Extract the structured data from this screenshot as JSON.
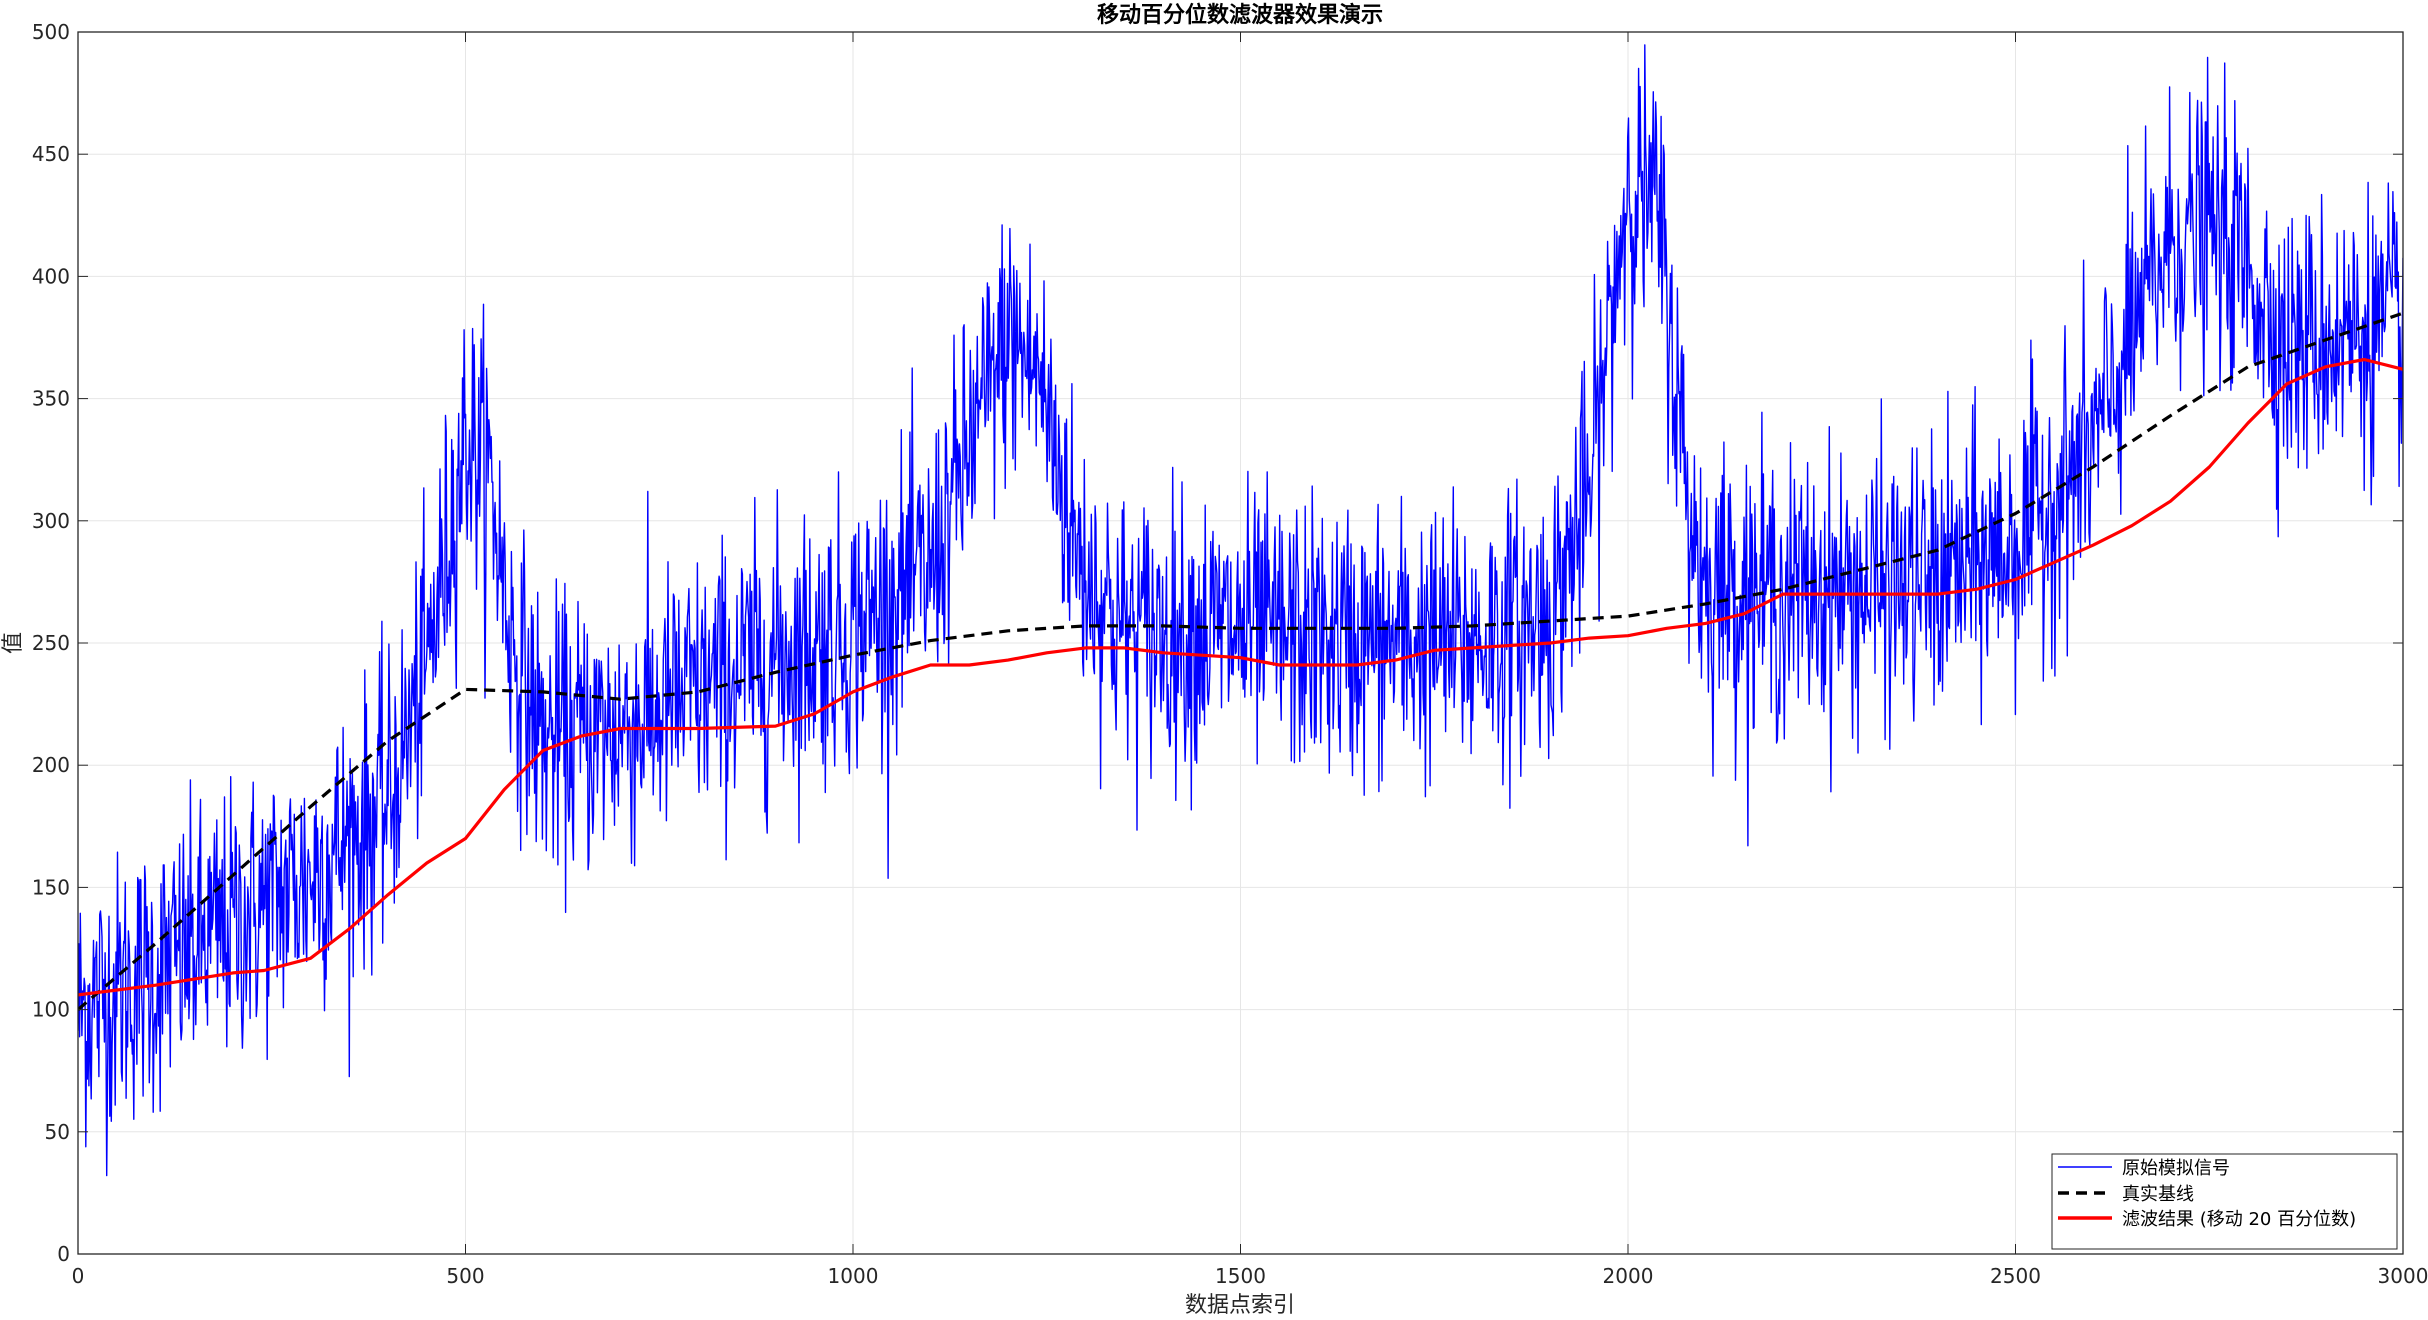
{
  "chart_data": {
    "type": "line",
    "title": "移动百分位数滤波器效果演示",
    "xlabel": "数据点索引",
    "ylabel": "值",
    "xlim": [
      0,
      3000
    ],
    "ylim": [
      0,
      500
    ],
    "xticks": [
      0,
      500,
      1000,
      1500,
      2000,
      2500,
      3000
    ],
    "yticks": [
      0,
      50,
      100,
      150,
      200,
      250,
      300,
      350,
      400,
      450,
      500
    ],
    "grid": true,
    "legend_position": "bottom-right",
    "series": [
      {
        "name": "原始模拟信号",
        "color": "#0000ff",
        "style": "solid",
        "noisy": true,
        "sample_count": 3000,
        "noise_amplitude": 28,
        "x": [
          0,
          100,
          200,
          300,
          400,
          450,
          500,
          530,
          560,
          600,
          700,
          800,
          900,
          1000,
          1100,
          1150,
          1200,
          1240,
          1290,
          1350,
          1500,
          1650,
          1800,
          1900,
          1950,
          2000,
          2040,
          2080,
          2100,
          2200,
          2300,
          2400,
          2500,
          2600,
          2650,
          2700,
          2750,
          2800,
          2850,
          2900,
          3000
        ],
        "y": [
          100,
          115,
          135,
          155,
          185,
          240,
          335,
          320,
          250,
          210,
          215,
          230,
          245,
          255,
          280,
          330,
          375,
          360,
          285,
          255,
          255,
          250,
          250,
          262,
          310,
          440,
          425,
          300,
          275,
          270,
          272,
          275,
          290,
          330,
          375,
          415,
          420,
          405,
          370,
          375,
          380
        ]
      },
      {
        "name": "真实基线",
        "color": "#000000",
        "style": "dashed",
        "x": [
          0,
          100,
          200,
          300,
          400,
          500,
          600,
          700,
          800,
          900,
          1000,
          1100,
          1200,
          1300,
          1400,
          1500,
          1600,
          1700,
          1800,
          1900,
          2000,
          2100,
          2200,
          2300,
          2400,
          2500,
          2600,
          2700,
          2800,
          2900,
          3000
        ],
        "y": [
          100,
          127,
          155,
          183,
          210,
          231,
          230,
          227,
          230,
          238,
          245,
          251,
          255,
          257,
          257,
          256,
          256,
          256,
          257,
          259,
          261,
          266,
          272,
          280,
          288,
          303,
          322,
          343,
          363,
          374,
          385
        ]
      },
      {
        "name": "滤波结果 (移动 20 百分位数)",
        "color": "#ff0000",
        "style": "solid",
        "x": [
          0,
          100,
          200,
          240,
          300,
          350,
          400,
          450,
          500,
          550,
          600,
          650,
          700,
          750,
          800,
          900,
          950,
          1000,
          1050,
          1100,
          1150,
          1200,
          1250,
          1300,
          1350,
          1400,
          1450,
          1500,
          1550,
          1600,
          1650,
          1700,
          1750,
          1800,
          1850,
          1900,
          1950,
          2000,
          2050,
          2100,
          2150,
          2200,
          2250,
          2300,
          2350,
          2400,
          2450,
          2500,
          2550,
          2600,
          2650,
          2700,
          2750,
          2800,
          2850,
          2900,
          2950,
          3000
        ],
        "y": [
          106,
          110,
          115,
          116,
          121,
          133,
          147,
          160,
          170,
          190,
          206,
          212,
          215,
          215,
          215,
          216,
          221,
          230,
          236,
          241,
          241,
          243,
          246,
          248,
          248,
          246,
          245,
          244,
          241,
          241,
          241,
          243,
          247,
          248,
          249,
          250,
          252,
          253,
          256,
          258,
          262,
          270,
          270,
          270,
          270,
          270,
          272,
          276,
          283,
          290,
          298,
          308,
          322,
          340,
          356,
          363,
          366,
          362
        ]
      }
    ]
  },
  "legend": {
    "items": [
      {
        "label": "原始模拟信号"
      },
      {
        "label": "真实基线"
      },
      {
        "label": "滤波结果 (移动 20 百分位数)"
      }
    ]
  }
}
